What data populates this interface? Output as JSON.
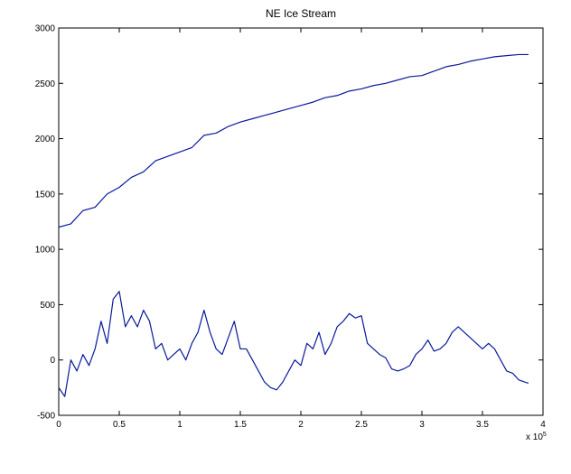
{
  "chart_data": {
    "type": "line",
    "title": "NE Ice Stream",
    "x_multiplier": {
      "base": "x 10",
      "exponent": "5"
    },
    "xlim": [
      0,
      4
    ],
    "xticks": [
      0,
      0.5,
      1,
      1.5,
      2,
      2.5,
      3,
      3.5,
      4
    ],
    "ylim": [
      -500,
      3000
    ],
    "yticks": [
      -500,
      0,
      500,
      1000,
      1500,
      2000,
      2500,
      3000
    ],
    "grid": false,
    "series": [
      {
        "color": "#0a1a9c",
        "x": [
          0,
          0.1,
          0.2,
          0.3,
          0.4,
          0.5,
          0.6,
          0.7,
          0.8,
          0.9,
          1.0,
          1.1,
          1.2,
          1.3,
          1.4,
          1.5,
          1.6,
          1.7,
          1.8,
          1.9,
          2.0,
          2.1,
          2.2,
          2.3,
          2.4,
          2.5,
          2.6,
          2.7,
          2.8,
          2.9,
          3.0,
          3.1,
          3.2,
          3.3,
          3.4,
          3.5,
          3.6,
          3.7,
          3.8,
          3.88
        ],
        "values": [
          1200,
          1230,
          1350,
          1380,
          1500,
          1560,
          1650,
          1700,
          1800,
          1840,
          1880,
          1920,
          2030,
          2050,
          2110,
          2150,
          2180,
          2210,
          2240,
          2270,
          2300,
          2330,
          2370,
          2390,
          2430,
          2450,
          2480,
          2500,
          2530,
          2560,
          2570,
          2610,
          2650,
          2670,
          2700,
          2720,
          2740,
          2750,
          2760,
          2760
        ]
      },
      {
        "color": "#0a1a9c",
        "x": [
          0,
          0.05,
          0.1,
          0.15,
          0.2,
          0.25,
          0.3,
          0.35,
          0.4,
          0.45,
          0.5,
          0.55,
          0.6,
          0.65,
          0.7,
          0.75,
          0.8,
          0.85,
          0.9,
          0.95,
          1.0,
          1.05,
          1.1,
          1.15,
          1.2,
          1.25,
          1.3,
          1.35,
          1.4,
          1.45,
          1.5,
          1.55,
          1.6,
          1.65,
          1.7,
          1.75,
          1.8,
          1.85,
          1.9,
          1.95,
          2.0,
          2.05,
          2.1,
          2.15,
          2.2,
          2.25,
          2.3,
          2.35,
          2.4,
          2.45,
          2.5,
          2.55,
          2.6,
          2.65,
          2.7,
          2.75,
          2.8,
          2.85,
          2.9,
          2.95,
          3.0,
          3.05,
          3.1,
          3.15,
          3.2,
          3.25,
          3.3,
          3.35,
          3.4,
          3.45,
          3.5,
          3.55,
          3.6,
          3.65,
          3.7,
          3.75,
          3.8,
          3.85,
          3.88
        ],
        "values": [
          -250,
          -330,
          0,
          -100,
          50,
          -50,
          100,
          350,
          150,
          550,
          620,
          300,
          400,
          300,
          450,
          350,
          100,
          150,
          0,
          50,
          100,
          0,
          150,
          250,
          450,
          250,
          100,
          50,
          200,
          350,
          100,
          100,
          0,
          -100,
          -200,
          -250,
          -270,
          -200,
          -100,
          0,
          -50,
          150,
          100,
          250,
          50,
          150,
          300,
          350,
          420,
          380,
          400,
          150,
          100,
          50,
          20,
          -80,
          -100,
          -80,
          -50,
          50,
          100,
          180,
          80,
          100,
          150,
          250,
          300,
          250,
          200,
          150,
          100,
          150,
          100,
          0,
          -100,
          -120,
          -180,
          -200,
          -210
        ]
      }
    ]
  }
}
